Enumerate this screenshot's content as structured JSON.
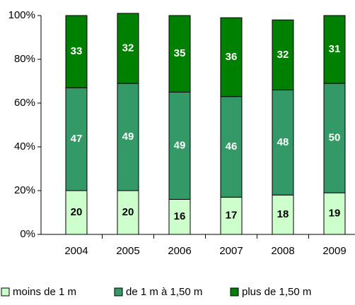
{
  "chart_data": {
    "type": "stacked_bar",
    "categories": [
      "2004",
      "2005",
      "2006",
      "2007",
      "2008",
      "2009"
    ],
    "series": [
      {
        "name": "moins de 1 m",
        "color": "#ccffcc",
        "values": [
          20,
          20,
          16,
          17,
          18,
          19
        ]
      },
      {
        "name": "de 1 m à 1,50 m",
        "color": "#339966",
        "values": [
          47,
          49,
          49,
          46,
          48,
          50
        ]
      },
      {
        "name": "plus de 1,50 m",
        "color": "#008000",
        "values": [
          33,
          32,
          35,
          36,
          32,
          31
        ]
      }
    ],
    "ylim": [
      0,
      100
    ],
    "yticks": [
      {
        "value": 0,
        "label": "0%"
      },
      {
        "value": 20,
        "label": "20%"
      },
      {
        "value": 40,
        "label": "40%"
      },
      {
        "value": 60,
        "label": "60%"
      },
      {
        "value": 80,
        "label": "80%"
      },
      {
        "value": 100,
        "label": "100%"
      }
    ],
    "legend": "bottom"
  }
}
